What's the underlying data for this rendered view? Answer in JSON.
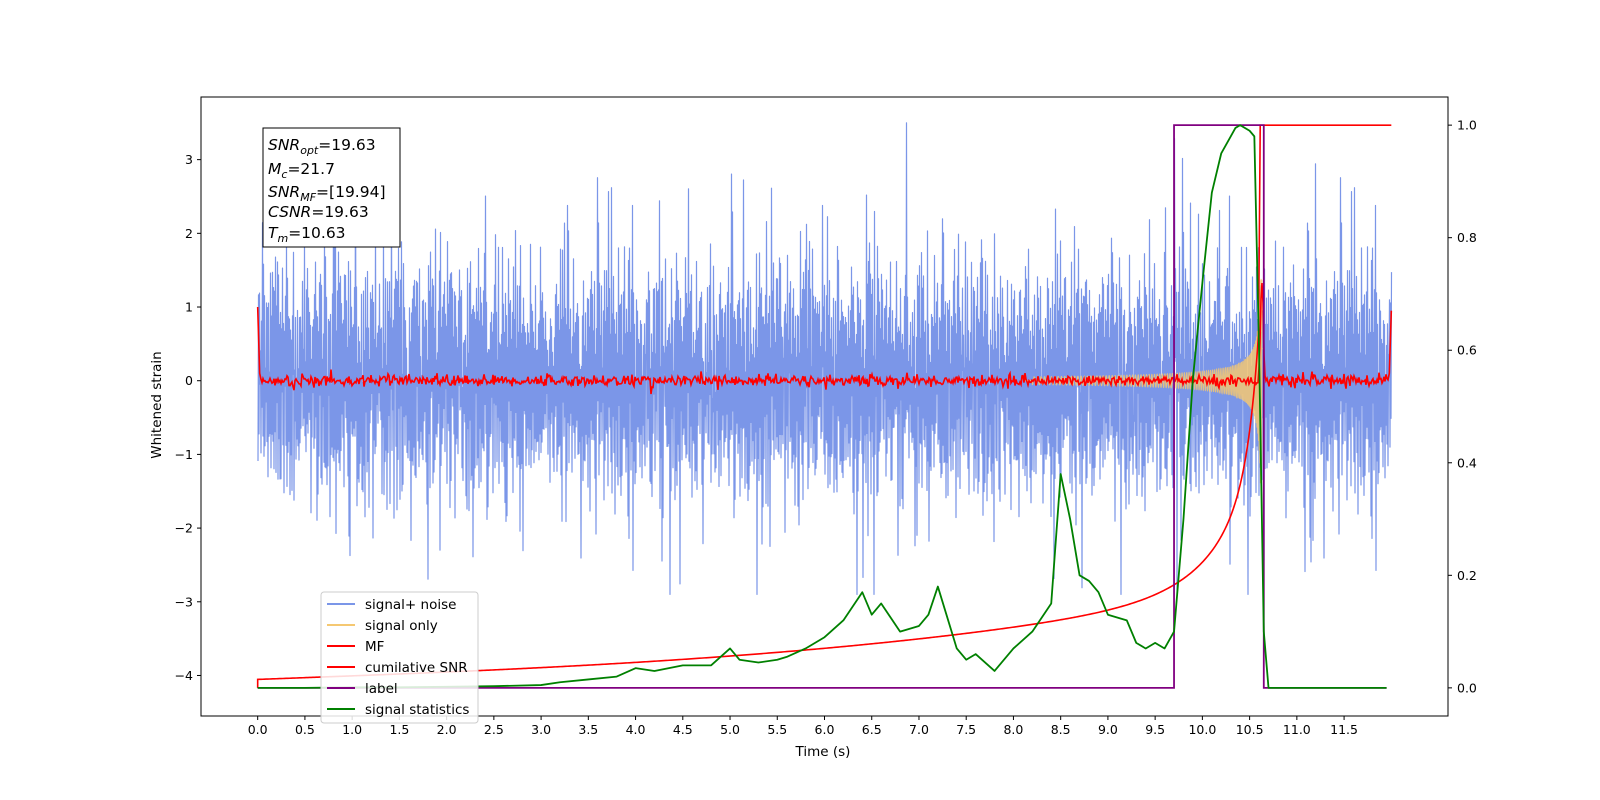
{
  "chart_data": {
    "type": "line",
    "xlabel": "Time (s)",
    "ylabel": "Whitened strain",
    "xlim": [
      -0.6,
      12.6
    ],
    "ylim": [
      -4.55,
      3.85
    ],
    "y2lim": [
      -0.05,
      1.05
    ],
    "x_ticks": [
      "0.0",
      "0.5",
      "1.0",
      "1.5",
      "2.0",
      "2.5",
      "3.0",
      "3.5",
      "4.0",
      "4.5",
      "5.0",
      "5.5",
      "6.0",
      "6.5",
      "7.0",
      "7.5",
      "8.0",
      "8.5",
      "9.0",
      "9.5",
      "10.0",
      "10.5",
      "11.0",
      "11.5"
    ],
    "y_ticks": [
      "3",
      "2",
      "1",
      "0",
      "−1",
      "−2",
      "−3",
      "−4"
    ],
    "y2_ticks": [
      "1.0",
      "0.8",
      "0.6",
      "0.4",
      "0.2",
      "0.0"
    ],
    "legend_location": "lower-left",
    "grid": false,
    "info_box": {
      "snr_opt": {
        "main": "SNR",
        "sub": "opt",
        "value": "=19.63"
      },
      "mc": {
        "main": "M",
        "sub": "c",
        "value": "=21.7"
      },
      "snr_mf": {
        "main": "SNR",
        "sub": "MF",
        "value": "=[19.94]"
      },
      "csnr": {
        "main": "CSNR",
        "value": "=19.63"
      },
      "tm": {
        "main": "T",
        "sub": "m",
        "value": "=10.63"
      }
    },
    "series": [
      {
        "name": "signal+ noise",
        "axis": "left",
        "color": "#7b96e8",
        "description_values": {
          "x_range": [
            0.0,
            12.0
          ],
          "noise_envelope": [
            -2.9,
            3.5
          ]
        }
      },
      {
        "name": "signal only",
        "axis": "left",
        "color": "#f5c872",
        "chirp": {
          "start": 8.7,
          "merger": 10.63,
          "peak_amplitude": 1.4
        }
      },
      {
        "name": "MF",
        "axis": "left",
        "color": "#ff0000",
        "noise_level": 0.07,
        "spike": {
          "x": 10.63,
          "peak": 1.4
        }
      },
      {
        "name": "cumilative SNR",
        "axis": "right",
        "color": "#ff0000",
        "x": [
          0.0,
          12.0
        ],
        "start": 0.015,
        "end": 1.0,
        "merger_time": 10.63
      },
      {
        "name": "label",
        "axis": "right",
        "color": "#800080",
        "x": [
          0.0,
          9.7,
          9.7,
          10.65,
          10.65,
          11.95
        ],
        "y": [
          0.0,
          0.0,
          1.0,
          1.0,
          0.0,
          0.0
        ]
      },
      {
        "name": "signal statistics",
        "axis": "right",
        "color": "#008000",
        "x": [
          0.0,
          0.5,
          1.0,
          1.5,
          2.0,
          2.5,
          3.0,
          3.2,
          3.5,
          3.8,
          4.0,
          4.2,
          4.5,
          4.8,
          5.0,
          5.1,
          5.3,
          5.5,
          5.6,
          5.8,
          6.0,
          6.2,
          6.4,
          6.5,
          6.6,
          6.8,
          7.0,
          7.1,
          7.2,
          7.4,
          7.5,
          7.6,
          7.8,
          8.0,
          8.2,
          8.4,
          8.5,
          8.6,
          8.7,
          8.8,
          8.9,
          9.0,
          9.2,
          9.3,
          9.4,
          9.5,
          9.6,
          9.7,
          9.8,
          9.9,
          10.0,
          10.1,
          10.2,
          10.3,
          10.35,
          10.4,
          10.5,
          10.55,
          10.6,
          10.65,
          10.7,
          11.0,
          11.5,
          11.95
        ],
        "y": [
          0.0,
          0.0,
          0.001,
          0.001,
          0.002,
          0.003,
          0.005,
          0.01,
          0.015,
          0.02,
          0.035,
          0.03,
          0.04,
          0.04,
          0.07,
          0.05,
          0.045,
          0.05,
          0.055,
          0.07,
          0.09,
          0.12,
          0.17,
          0.13,
          0.15,
          0.1,
          0.11,
          0.13,
          0.18,
          0.07,
          0.05,
          0.06,
          0.03,
          0.07,
          0.1,
          0.15,
          0.38,
          0.3,
          0.2,
          0.19,
          0.17,
          0.13,
          0.12,
          0.08,
          0.07,
          0.08,
          0.07,
          0.1,
          0.3,
          0.55,
          0.72,
          0.88,
          0.95,
          0.98,
          0.995,
          1.0,
          0.99,
          0.98,
          0.6,
          0.1,
          0.0,
          0.0,
          0.0,
          0.0
        ]
      }
    ]
  }
}
